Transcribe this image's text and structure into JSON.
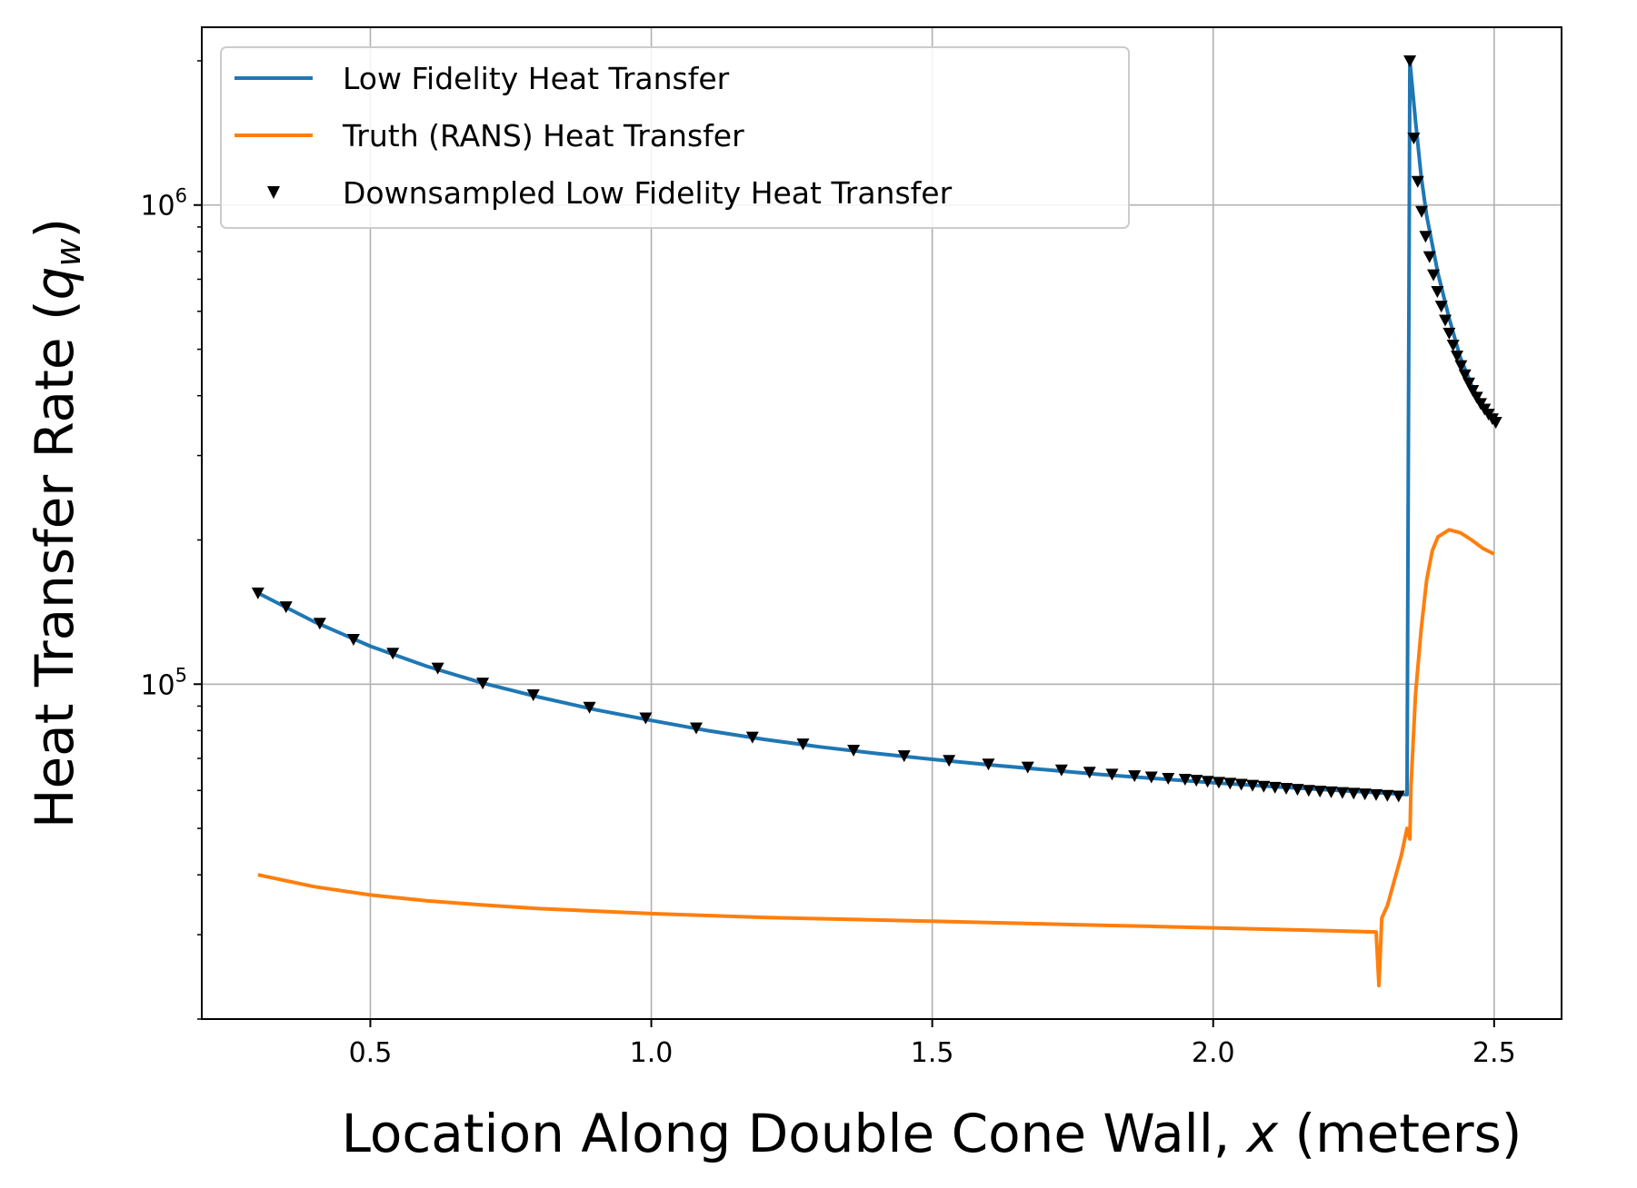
{
  "chart_data": {
    "type": "line",
    "xlabel_prefix": "Location Along Double Cone Wall, ",
    "xlabel_var": "x",
    "xlabel_suffix": " (meters)",
    "ylabel_prefix": "Heat Transfer Rate (",
    "ylabel_var": "q",
    "ylabel_sub": "w",
    "ylabel_suffix": ")",
    "xlim": [
      0.2,
      2.62
    ],
    "ylim": [
      20000,
      2350000
    ],
    "yscale": "log",
    "grid": true,
    "legend_position": "top-left",
    "x_ticks": [
      "0.5",
      "1.0",
      "1.5",
      "2.0",
      "2.5"
    ],
    "y_tick_labels": [
      {
        "value": 100000,
        "base": "10",
        "exp": "5"
      },
      {
        "value": 1000000,
        "base": "10",
        "exp": "6"
      }
    ],
    "series": [
      {
        "name": "Low Fidelity Heat Transfer",
        "kind": "line",
        "color": "#1f77b4",
        "points": [
          [
            0.3,
            155000
          ],
          [
            0.4,
            135000
          ],
          [
            0.5,
            120000
          ],
          [
            0.6,
            109000
          ],
          [
            0.7,
            100500
          ],
          [
            0.8,
            94000
          ],
          [
            0.9,
            88500
          ],
          [
            1.0,
            84000
          ],
          [
            1.1,
            80000
          ],
          [
            1.2,
            76700
          ],
          [
            1.3,
            74000
          ],
          [
            1.4,
            71700
          ],
          [
            1.5,
            69700
          ],
          [
            1.6,
            67900
          ],
          [
            1.7,
            66300
          ],
          [
            1.8,
            64800
          ],
          [
            1.9,
            63500
          ],
          [
            2.0,
            62300
          ],
          [
            2.1,
            61200
          ],
          [
            2.2,
            60200
          ],
          [
            2.3,
            59300
          ],
          [
            2.345,
            58800
          ],
          [
            2.35,
            2000000
          ],
          [
            2.36,
            1500000
          ],
          [
            2.37,
            1150000
          ],
          [
            2.38,
            950000
          ],
          [
            2.4,
            720000
          ],
          [
            2.42,
            580000
          ],
          [
            2.44,
            480000
          ],
          [
            2.46,
            420000
          ],
          [
            2.48,
            380000
          ],
          [
            2.5,
            355000
          ]
        ]
      },
      {
        "name": "Truth (RANS) Heat Transfer",
        "kind": "line",
        "color": "#ff7f0e",
        "points": [
          [
            0.3,
            40000
          ],
          [
            0.4,
            37800
          ],
          [
            0.5,
            36300
          ],
          [
            0.6,
            35300
          ],
          [
            0.7,
            34600
          ],
          [
            0.8,
            34000
          ],
          [
            0.9,
            33600
          ],
          [
            1.0,
            33200
          ],
          [
            1.1,
            32900
          ],
          [
            1.2,
            32600
          ],
          [
            1.3,
            32400
          ],
          [
            1.4,
            32200
          ],
          [
            1.5,
            32000
          ],
          [
            1.6,
            31800
          ],
          [
            1.7,
            31600
          ],
          [
            1.8,
            31400
          ],
          [
            1.9,
            31200
          ],
          [
            2.0,
            31000
          ],
          [
            2.1,
            30800
          ],
          [
            2.2,
            30600
          ],
          [
            2.29,
            30400
          ],
          [
            2.295,
            23500
          ],
          [
            2.3,
            32500
          ],
          [
            2.31,
            34500
          ],
          [
            2.32,
            38000
          ],
          [
            2.335,
            44000
          ],
          [
            2.345,
            50000
          ],
          [
            2.35,
            47500
          ],
          [
            2.352,
            61000
          ],
          [
            2.36,
            95000
          ],
          [
            2.37,
            130000
          ],
          [
            2.38,
            165000
          ],
          [
            2.39,
            190000
          ],
          [
            2.4,
            203000
          ],
          [
            2.42,
            210000
          ],
          [
            2.44,
            207000
          ],
          [
            2.46,
            200000
          ],
          [
            2.48,
            192000
          ],
          [
            2.5,
            187000
          ]
        ]
      },
      {
        "name": "Downsampled Low Fidelity Heat Transfer",
        "kind": "scatter",
        "color": "#000000",
        "points": [
          [
            0.3,
            155000
          ],
          [
            0.35,
            145000
          ],
          [
            0.41,
            134000
          ],
          [
            0.47,
            124000
          ],
          [
            0.54,
            116000
          ],
          [
            0.62,
            108000
          ],
          [
            0.7,
            100500
          ],
          [
            0.79,
            95000
          ],
          [
            0.89,
            89500
          ],
          [
            0.99,
            85000
          ],
          [
            1.08,
            81000
          ],
          [
            1.18,
            77500
          ],
          [
            1.27,
            75000
          ],
          [
            1.36,
            72800
          ],
          [
            1.45,
            70900
          ],
          [
            1.53,
            69300
          ],
          [
            1.6,
            68100
          ],
          [
            1.67,
            67100
          ],
          [
            1.73,
            66200
          ],
          [
            1.78,
            65500
          ],
          [
            1.82,
            64900
          ],
          [
            1.86,
            64400
          ],
          [
            1.89,
            64000
          ],
          [
            1.92,
            63600
          ],
          [
            1.95,
            63300
          ],
          [
            1.97,
            63000
          ],
          [
            1.99,
            62700
          ],
          [
            2.01,
            62400
          ],
          [
            2.03,
            62100
          ],
          [
            2.05,
            61800
          ],
          [
            2.07,
            61500
          ],
          [
            2.09,
            61200
          ],
          [
            2.11,
            60900
          ],
          [
            2.13,
            60600
          ],
          [
            2.15,
            60300
          ],
          [
            2.17,
            60000
          ],
          [
            2.19,
            59800
          ],
          [
            2.21,
            59600
          ],
          [
            2.23,
            59400
          ],
          [
            2.25,
            59200
          ],
          [
            2.27,
            59000
          ],
          [
            2.29,
            58800
          ],
          [
            2.31,
            58600
          ],
          [
            2.33,
            58400
          ],
          [
            2.35,
            2000000
          ],
          [
            2.357,
            1380000
          ],
          [
            2.364,
            1120000
          ],
          [
            2.371,
            970000
          ],
          [
            2.378,
            860000
          ],
          [
            2.385,
            780000
          ],
          [
            2.392,
            715000
          ],
          [
            2.399,
            660000
          ],
          [
            2.406,
            615000
          ],
          [
            2.413,
            575000
          ],
          [
            2.42,
            540000
          ],
          [
            2.427,
            510000
          ],
          [
            2.434,
            484000
          ],
          [
            2.441,
            462000
          ],
          [
            2.448,
            442000
          ],
          [
            2.455,
            425000
          ],
          [
            2.462,
            410000
          ],
          [
            2.469,
            397000
          ],
          [
            2.476,
            385000
          ],
          [
            2.483,
            375000
          ],
          [
            2.49,
            366000
          ],
          [
            2.497,
            358000
          ],
          [
            2.503,
            352000
          ]
        ]
      }
    ]
  }
}
